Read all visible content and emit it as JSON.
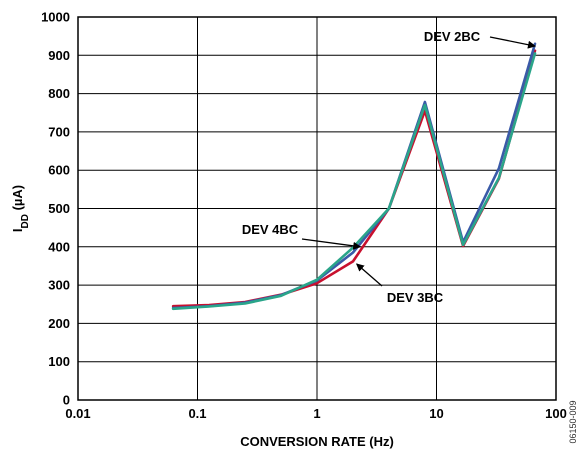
{
  "chart_data": {
    "type": "line",
    "title": "",
    "xlabel": "CONVERSION RATE (Hz)",
    "ylabel_main": "I",
    "ylabel_sub": "DD",
    "ylabel_unit": " (µA)",
    "x_scale": "log",
    "xlim": [
      0.01,
      100
    ],
    "ylim": [
      0,
      1000
    ],
    "grid": true,
    "xticks": [
      {
        "v": 0.01,
        "label": "0.01"
      },
      {
        "v": 0.1,
        "label": "0.1"
      },
      {
        "v": 1,
        "label": "1"
      },
      {
        "v": 10,
        "label": "10"
      },
      {
        "v": 100,
        "label": "100"
      }
    ],
    "yticks": [
      {
        "v": 0,
        "label": "0"
      },
      {
        "v": 100,
        "label": "100"
      },
      {
        "v": 200,
        "label": "200"
      },
      {
        "v": 300,
        "label": "300"
      },
      {
        "v": 400,
        "label": "400"
      },
      {
        "v": 500,
        "label": "500"
      },
      {
        "v": 600,
        "label": "600"
      },
      {
        "v": 700,
        "label": "700"
      },
      {
        "v": 800,
        "label": "800"
      },
      {
        "v": 900,
        "label": "900"
      },
      {
        "v": 1000,
        "label": "1000"
      }
    ],
    "x": [
      0.0625,
      0.125,
      0.25,
      0.5,
      1,
      2,
      4,
      8,
      16.7,
      33.3,
      66.7
    ],
    "series": [
      {
        "name": "DEV 3BC",
        "color": "#c8102e",
        "values": [
          245,
          248,
          256,
          275,
          305,
          362,
          500,
          755,
          402,
          578,
          912
        ]
      },
      {
        "name": "DEV 2BC",
        "color": "#3a5aa8",
        "values": [
          240,
          245,
          254,
          274,
          312,
          385,
          500,
          778,
          412,
          605,
          930
        ]
      },
      {
        "name": "DEV 4BC",
        "color": "#2aa58a",
        "values": [
          238,
          244,
          252,
          272,
          314,
          398,
          500,
          770,
          405,
          580,
          905
        ]
      }
    ],
    "annotations": [
      {
        "text": "DEV 2BC",
        "series": "DEV 2BC"
      },
      {
        "text": "DEV 4BC",
        "series": "DEV 4BC"
      },
      {
        "text": "DEV 3BC",
        "series": "DEV 3BC"
      }
    ],
    "figure_id": "06150-009"
  }
}
